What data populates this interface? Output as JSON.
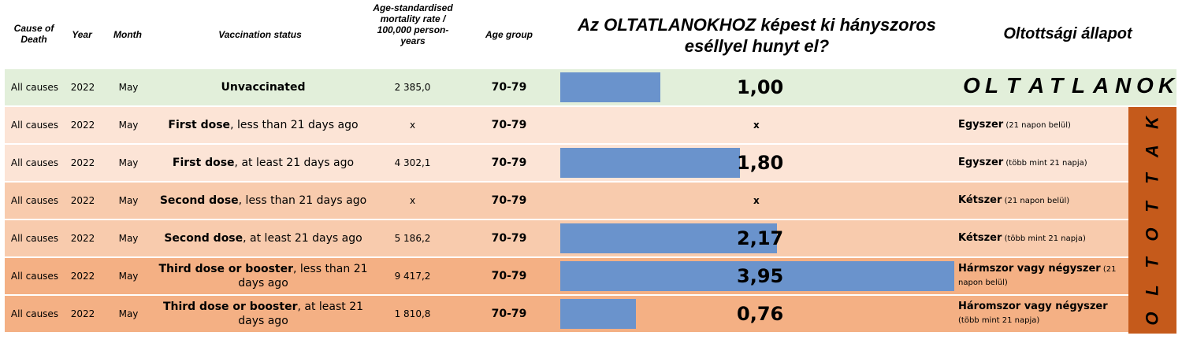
{
  "headers": {
    "cause": "Cause of Death",
    "year": "Year",
    "month": "Month",
    "status": "Vaccination status",
    "rate": "Age-standardised mortality rate / 100,000 person-years",
    "age": "Age group",
    "chart_title": "Az OLTATLANOKHOZ képest ki hányszoros eséllyel hunyt el?",
    "hu_status": "Oltottsági állapot"
  },
  "group_labels": {
    "unvaccinated": "OLTATLANOK",
    "vaccinated": "OLTOTTAK"
  },
  "colors": {
    "bar": "#6a93cc",
    "row_unvaccinated": "#e2efda",
    "row_first": "#fce4d6",
    "row_second": "#f8cbad",
    "row_third": "#f4b084",
    "side_box": "#c55a1b"
  },
  "rows": [
    {
      "cause": "All causes",
      "year": "2022",
      "month": "May",
      "status_bold": "Unvaccinated",
      "status_rest": "",
      "rate": "2 385,0",
      "age": "70-79",
      "ratio_label": "1,00",
      "hu_main": "",
      "hu_sub": "",
      "color": "#e2efda"
    },
    {
      "cause": "All causes",
      "year": "2022",
      "month": "May",
      "status_bold": "First dose",
      "status_rest": ", less than 21 days ago",
      "rate": "x",
      "age": "70-79",
      "ratio_label": "x",
      "hu_main": "Egyszer",
      "hu_sub": " (21 napon belül)",
      "color": "#fce4d6"
    },
    {
      "cause": "All causes",
      "year": "2022",
      "month": "May",
      "status_bold": "First dose",
      "status_rest": ", at least 21 days ago",
      "rate": "4 302,1",
      "age": "70-79",
      "ratio_label": "1,80",
      "hu_main": "Egyszer",
      "hu_sub": " (több mint 21 napja)",
      "color": "#fce4d6"
    },
    {
      "cause": "All causes",
      "year": "2022",
      "month": "May",
      "status_bold": "Second dose",
      "status_rest": ", less than 21 days ago",
      "rate": "x",
      "age": "70-79",
      "ratio_label": "x",
      "hu_main": "Kétszer",
      "hu_sub": " (21 napon belül)",
      "color": "#f8cbad"
    },
    {
      "cause": "All causes",
      "year": "2022",
      "month": "May",
      "status_bold": "Second dose",
      "status_rest": ",  at least 21 days ago",
      "rate": "5 186,2",
      "age": "70-79",
      "ratio_label": "2,17",
      "hu_main": "Kétszer",
      "hu_sub": " (több mint 21 napja)",
      "color": "#f8cbad"
    },
    {
      "cause": "All causes",
      "year": "2022",
      "month": "May",
      "status_bold": "Third dose or booster",
      "status_rest": ", less than 21 days ago",
      "rate": "9 417,2",
      "age": "70-79",
      "ratio_label": "3,95",
      "hu_main": "Hármszor vagy négyszer",
      "hu_sub": " (21 napon belül)",
      "color": "#f4b084"
    },
    {
      "cause": "All causes",
      "year": "2022",
      "month": "May",
      "status_bold": "Third dose or booster",
      "status_rest": ", at least 21 days ago",
      "rate": "1 810,8",
      "age": "70-79",
      "ratio_label": "0,76",
      "hu_main": "Háromszor vagy négyszer",
      "hu_sub": " (több mint 21 napja)",
      "color": "#f4b084"
    }
  ],
  "chart_data": {
    "type": "bar",
    "orientation": "horizontal",
    "title": "Az OLTATLANOKHOZ képest ki hányszoros eséllyel hunyt el?",
    "categories": [
      "Unvaccinated",
      "First dose, less than 21 days ago",
      "First dose, at least 21 days ago",
      "Second dose, less than 21 days ago",
      "Second dose,  at least 21 days ago",
      "Third dose or booster, less than 21 days ago",
      "Third dose or booster, at least 21 days ago"
    ],
    "values": [
      1.0,
      null,
      1.8,
      null,
      2.17,
      3.95,
      0.76
    ],
    "xlim": [
      0,
      3.95
    ]
  }
}
